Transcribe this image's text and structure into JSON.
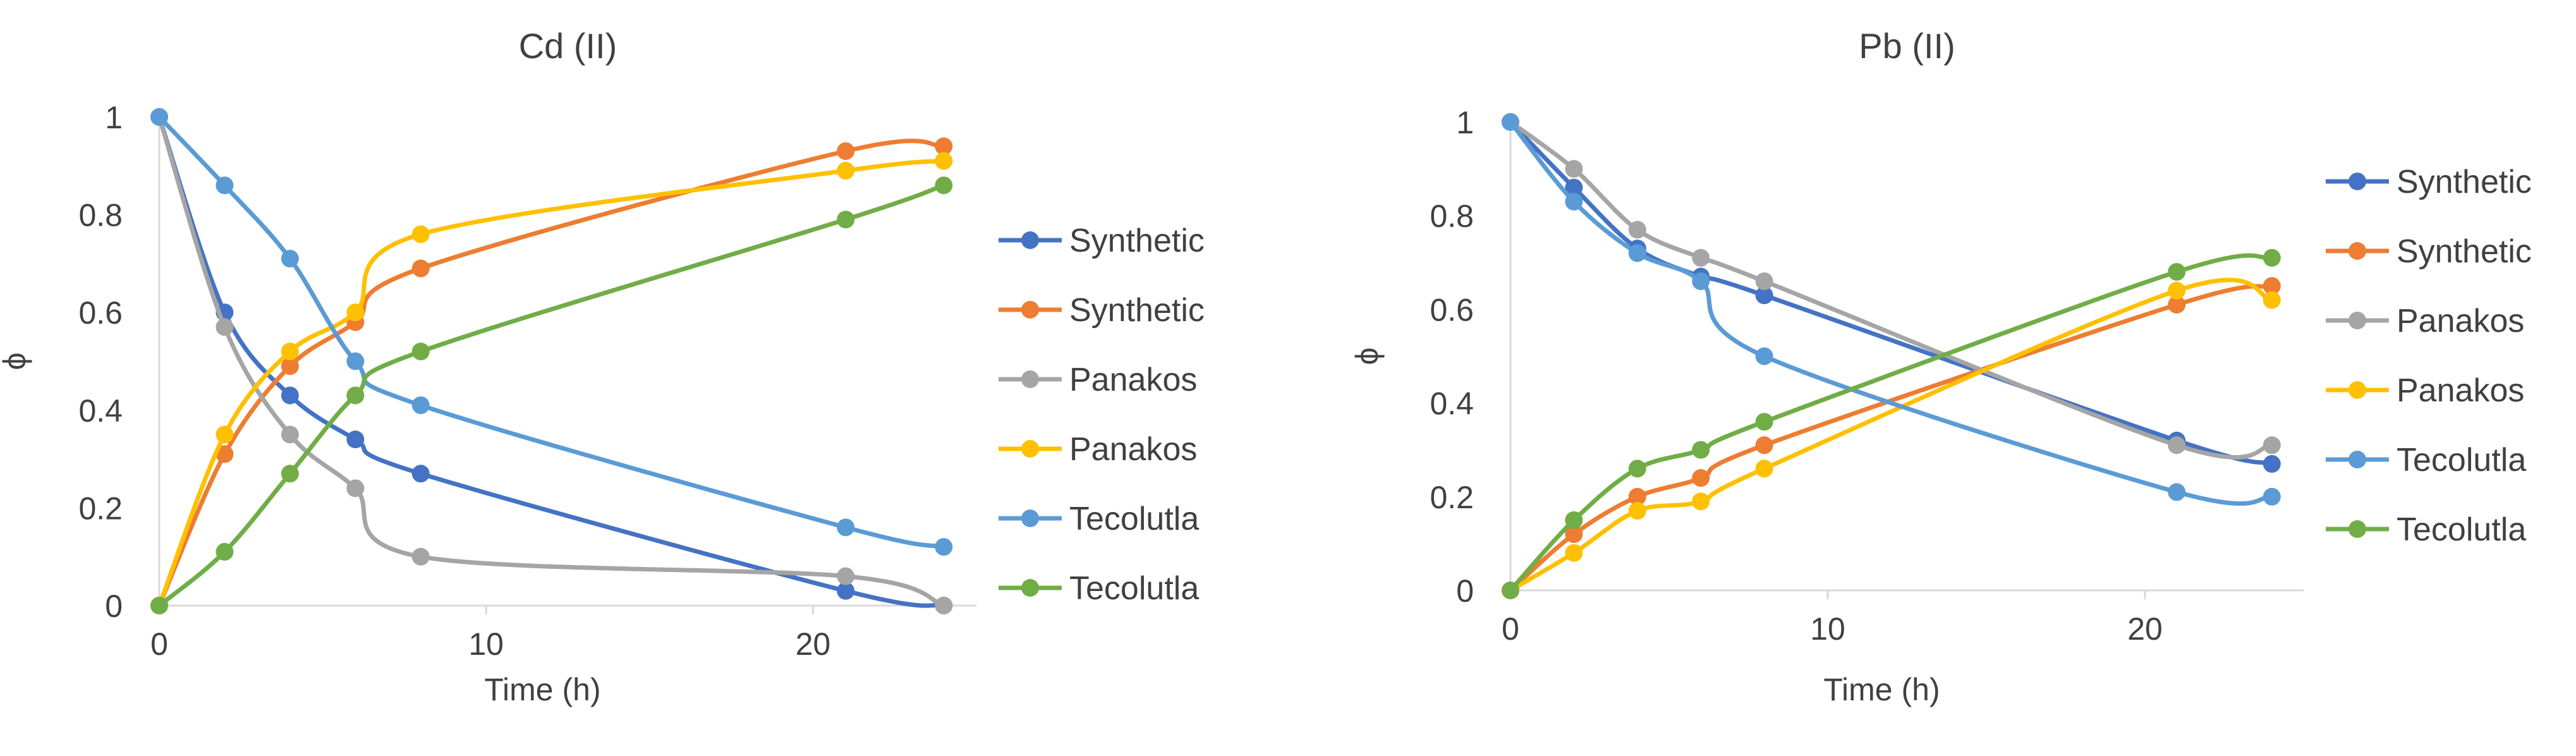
{
  "chart_data": [
    {
      "type": "line",
      "title": "Cd (II)",
      "xlabel": "Time (h)",
      "ylabel": "ϕ",
      "xlim": [
        0,
        25
      ],
      "ylim": [
        0,
        1
      ],
      "xticks": [
        0,
        10,
        20
      ],
      "yticks": [
        0,
        0.2,
        0.4,
        0.6,
        0.8,
        1
      ],
      "ytick_labels": [
        "0",
        "0.2",
        "0.4",
        "0.6",
        "0.8",
        "1"
      ],
      "x": [
        0,
        2,
        4,
        6,
        8,
        21,
        24
      ],
      "legend_position": "right",
      "grid": false,
      "series": [
        {
          "name": "Synthetic",
          "color": "#4472C4",
          "values": [
            1,
            0.6,
            0.43,
            0.34,
            0.27,
            0.03,
            0
          ]
        },
        {
          "name": "Synthetic",
          "color": "#ED7D31",
          "values": [
            0,
            0.31,
            0.49,
            0.58,
            0.69,
            0.93,
            0.94
          ]
        },
        {
          "name": "Panakos",
          "color": "#A5A5A5",
          "values": [
            1,
            0.57,
            0.35,
            0.24,
            0.1,
            0.06,
            0
          ]
        },
        {
          "name": "Panakos",
          "color": "#FFC000",
          "values": [
            0,
            0.35,
            0.52,
            0.6,
            0.76,
            0.89,
            0.91
          ]
        },
        {
          "name": "Tecolutla",
          "color": "#5B9BD5",
          "values": [
            1,
            0.86,
            0.71,
            0.5,
            0.41,
            0.16,
            0.12
          ]
        },
        {
          "name": "Tecolutla",
          "color": "#70AD47",
          "values": [
            0,
            0.11,
            0.27,
            0.43,
            0.52,
            0.79,
            0.86
          ]
        }
      ]
    },
    {
      "type": "line",
      "title": "Pb (II)",
      "xlabel": "Time (h)",
      "ylabel": "ϕ",
      "xlim": [
        0,
        25
      ],
      "ylim": [
        0,
        1
      ],
      "xticks": [
        0,
        10,
        20
      ],
      "yticks": [
        0,
        0.2,
        0.4,
        0.6,
        0.8,
        1
      ],
      "ytick_labels": [
        "0",
        "0.2",
        "0.4",
        "0.6",
        "0.8",
        "1"
      ],
      "x": [
        0,
        2,
        4,
        6,
        8,
        21,
        24
      ],
      "legend_position": "right",
      "grid": false,
      "series": [
        {
          "name": "Synthetic",
          "color": "#4472C4",
          "values": [
            1,
            0.86,
            0.73,
            0.67,
            0.63,
            0.32,
            0.27
          ]
        },
        {
          "name": "Synthetic",
          "color": "#ED7D31",
          "values": [
            0,
            0.12,
            0.2,
            0.24,
            0.31,
            0.61,
            0.65
          ]
        },
        {
          "name": "Panakos",
          "color": "#A5A5A5",
          "values": [
            1,
            0.9,
            0.77,
            0.71,
            0.66,
            0.31,
            0.31
          ]
        },
        {
          "name": "Panakos",
          "color": "#FFC000",
          "values": [
            0,
            0.08,
            0.17,
            0.19,
            0.26,
            0.64,
            0.62
          ]
        },
        {
          "name": "Tecolutla",
          "color": "#5B9BD5",
          "values": [
            1,
            0.83,
            0.72,
            0.66,
            0.5,
            0.21,
            0.2
          ]
        },
        {
          "name": "Tecolutla",
          "color": "#70AD47",
          "values": [
            0,
            0.15,
            0.26,
            0.3,
            0.36,
            0.68,
            0.71
          ]
        }
      ]
    }
  ]
}
